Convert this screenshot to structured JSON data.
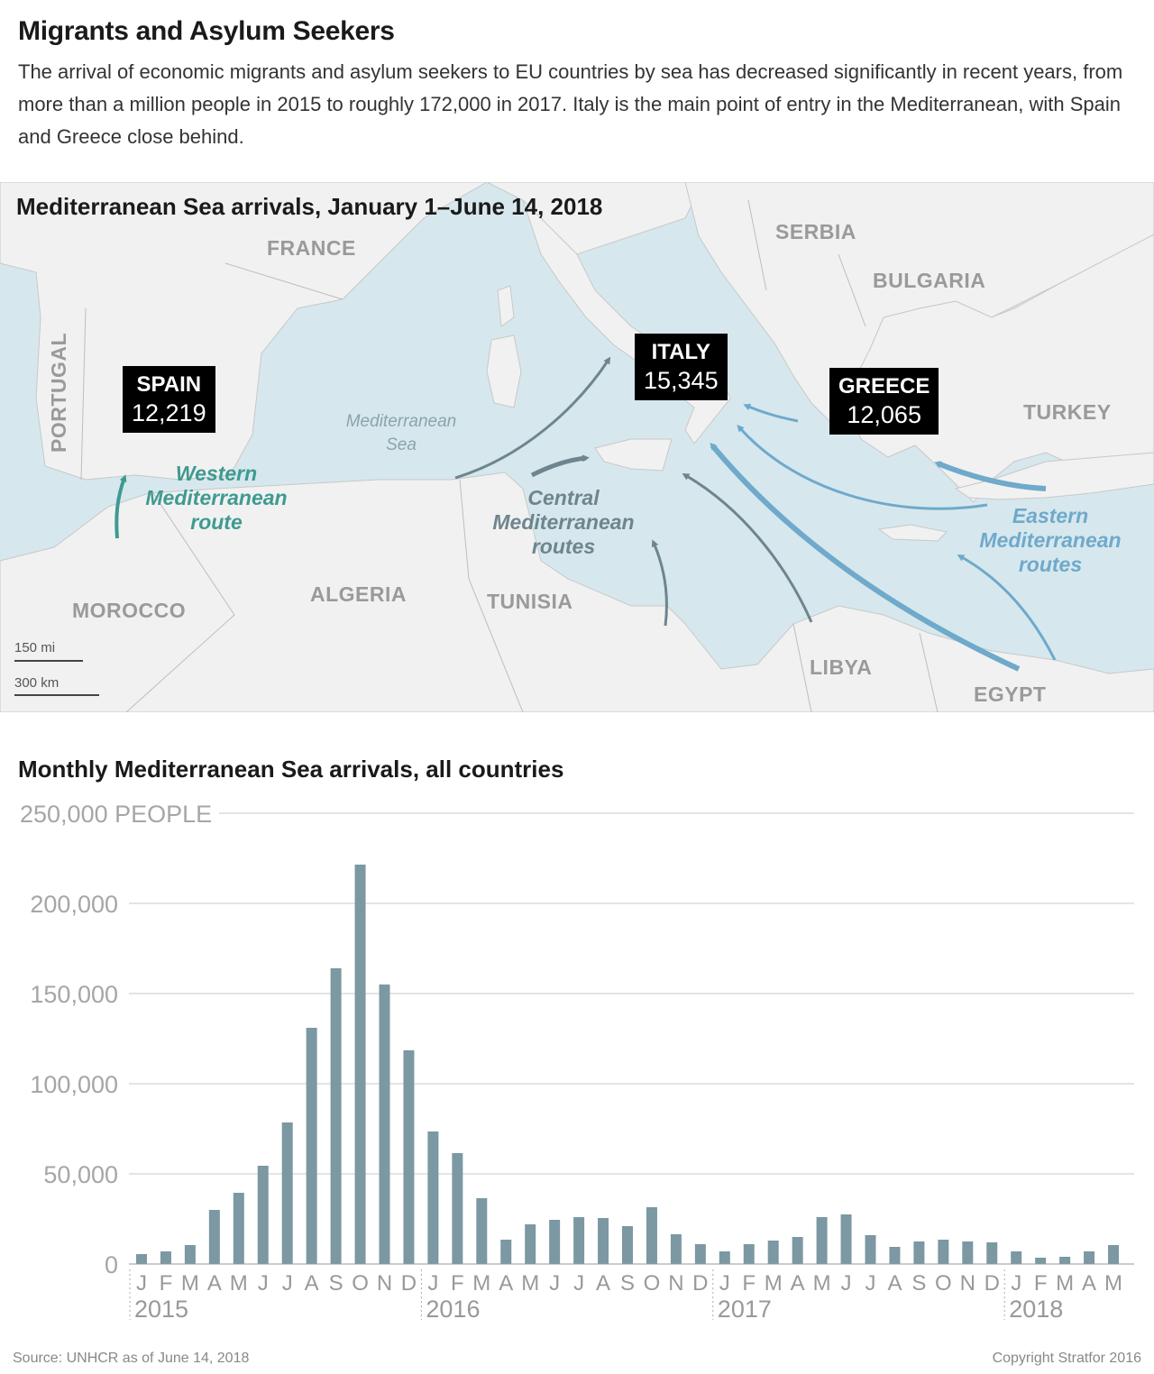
{
  "header": {
    "title": "Migrants and Asylum Seekers",
    "subtitle": "The arrival of economic migrants and asylum seekers to EU countries by sea has decreased significantly in recent years, from more than a million people in 2015 to roughly 172,000 in 2017. Italy is the main point of entry in the Mediterranean, with Spain and Greece close behind."
  },
  "map": {
    "title": "Mediterranean Sea arrivals, January 1–June 14, 2018",
    "countries": {
      "france": "FRANCE",
      "serbia": "SERBIA",
      "bulgaria": "BULGARIA",
      "portugal": "PORTUGAL",
      "turkey": "TURKEY",
      "morocco": "MOROCCO",
      "algeria": "ALGERIA",
      "tunisia": "TUNISIA",
      "libya": "LIBYA",
      "egypt": "EGYPT"
    },
    "callouts": {
      "spain": {
        "name": "SPAIN",
        "value": "12,219"
      },
      "italy": {
        "name": "ITALY",
        "value": "15,345"
      },
      "greece": {
        "name": "GREECE",
        "value": "12,065"
      }
    },
    "sea_label": {
      "line1": "Mediterranean",
      "line2": "Sea"
    },
    "routes": {
      "western": {
        "line1": "Western",
        "line2": "Mediterranean",
        "line3": "route",
        "color": "#3e9a91"
      },
      "central": {
        "line1": "Central",
        "line2": "Mediterranean",
        "line3": "routes",
        "color": "#6e858e"
      },
      "eastern": {
        "line1": "Eastern",
        "line2": "Mediterranean",
        "line3": "routes",
        "color": "#6fa9cb"
      }
    },
    "scale": {
      "mi": "150 mi",
      "km": "300 km"
    }
  },
  "chart_data": {
    "type": "bar",
    "title": "Monthly Mediterranean Sea arrivals, all countries",
    "ylabel": "PEOPLE",
    "ylim": [
      0,
      250000
    ],
    "yticks": [
      {
        "value": 0,
        "label": "0"
      },
      {
        "value": 50000,
        "label": "50,000"
      },
      {
        "value": 100000,
        "label": "100,000"
      },
      {
        "value": 150000,
        "label": "150,000"
      },
      {
        "value": 200000,
        "label": "200,000"
      },
      {
        "value": 250000,
        "label": "250,000 PEOPLE"
      }
    ],
    "bar_color": "#7b98a3",
    "months": [
      "J",
      "F",
      "M",
      "A",
      "M",
      "J",
      "J",
      "A",
      "S",
      "O",
      "N",
      "D",
      "J",
      "F",
      "M",
      "A",
      "M",
      "J",
      "J",
      "A",
      "S",
      "O",
      "N",
      "D",
      "J",
      "F",
      "M",
      "A",
      "M",
      "J",
      "J",
      "A",
      "S",
      "O",
      "N",
      "D",
      "J",
      "F",
      "M",
      "A",
      "M"
    ],
    "years": [
      {
        "label": "2015",
        "start_index": 0
      },
      {
        "label": "2016",
        "start_index": 12
      },
      {
        "label": "2017",
        "start_index": 24
      },
      {
        "label": "2018",
        "start_index": 36
      }
    ],
    "values": [
      5500,
      7000,
      10500,
      30000,
      39500,
      54500,
      78500,
      131000,
      164000,
      221500,
      155000,
      118500,
      73500,
      61500,
      36500,
      13500,
      22000,
      24500,
      26000,
      25500,
      21000,
      31500,
      16500,
      11000,
      7000,
      11000,
      13000,
      15000,
      26000,
      27500,
      16000,
      9500,
      12500,
      13500,
      12500,
      12000,
      7000,
      3500,
      4000,
      7000,
      10500
    ]
  },
  "footer": {
    "source": "Source: UNHCR as of June 14, 2018",
    "copyright": "Copyright Stratfor 2016"
  }
}
